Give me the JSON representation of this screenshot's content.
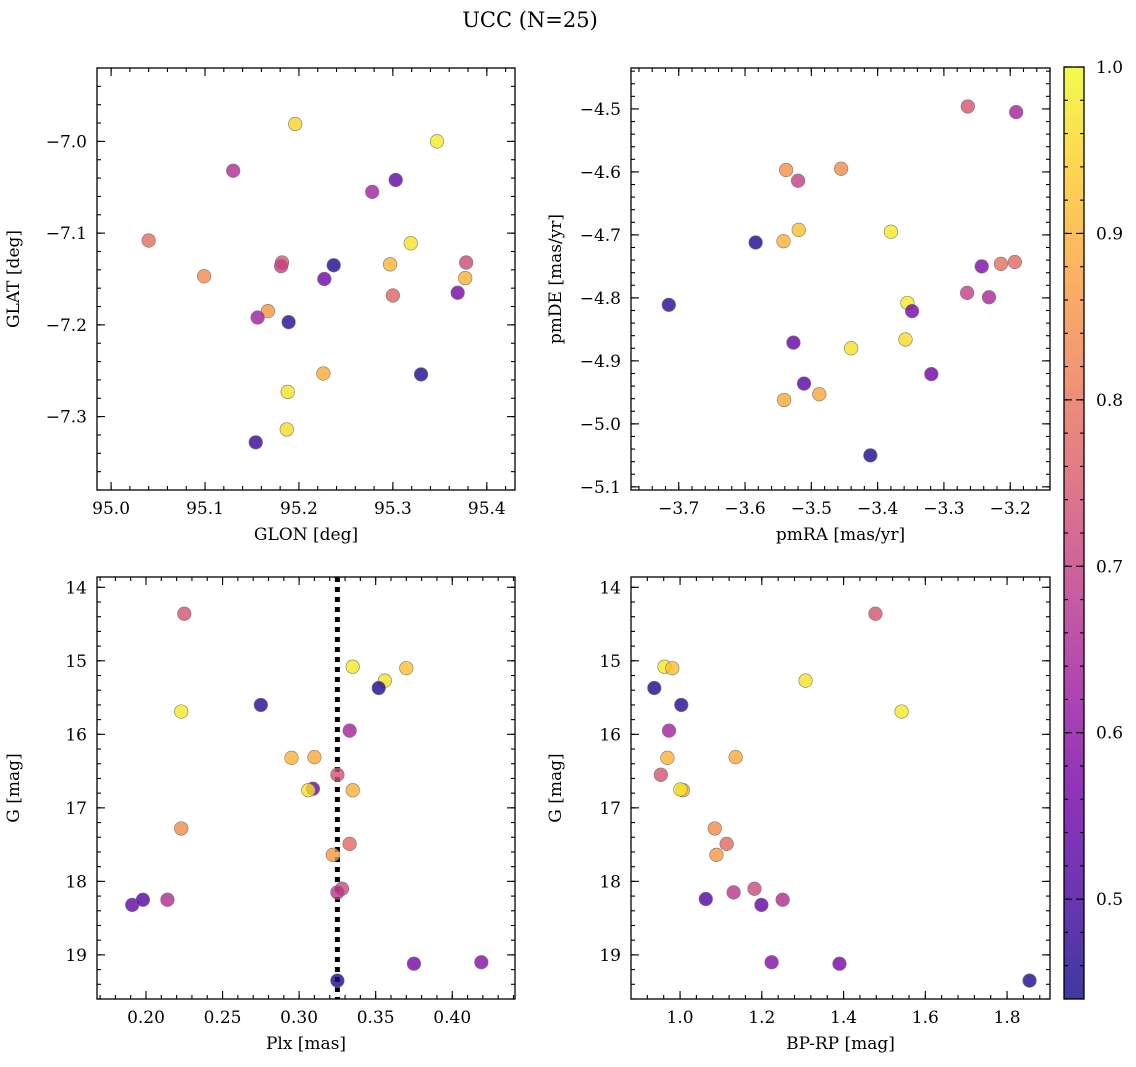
{
  "title": "UCC (N=25)",
  "colorbar": {
    "min": 0.44,
    "max": 1.0,
    "ticks": [
      0.5,
      0.6,
      0.7,
      0.8,
      0.9,
      1.0
    ],
    "tick_labels": [
      "0.5",
      "0.6",
      "0.7",
      "0.8",
      "0.9",
      "1.0"
    ],
    "colormap": "plasma",
    "colors": [
      "#0d0887",
      "#46039f",
      "#7201a8",
      "#9c179e",
      "#bd3786",
      "#d8576b",
      "#ed7953",
      "#fb9f3a",
      "#fdca26",
      "#f0f921"
    ],
    "point_alpha": 0.8
  },
  "chart_data": [
    {
      "type": "scatter",
      "id": "glon-glat",
      "xlabel": "GLON [deg]",
      "ylabel": "GLAT [deg]",
      "xlim": [
        94.985,
        95.43
      ],
      "ylim": [
        -7.38,
        -6.92
      ],
      "y_inverted": false,
      "x_ticks": [
        95.0,
        95.1,
        95.2,
        95.3,
        95.4
      ],
      "x_tick_labels": [
        "95.0",
        "95.1",
        "95.2",
        "95.3",
        "95.4"
      ],
      "y_ticks": [
        -7.0,
        -7.1,
        -7.2,
        -7.3
      ],
      "y_tick_labels": [
        "−7.0",
        "−7.1",
        "−7.2",
        "−7.3"
      ],
      "points": [
        {
          "x": 95.196,
          "y": -6.981,
          "c": 0.95
        },
        {
          "x": 95.347,
          "y": -7.0,
          "c": 0.98
        },
        {
          "x": 95.13,
          "y": -7.032,
          "c": 0.66
        },
        {
          "x": 95.278,
          "y": -7.055,
          "c": 0.64
        },
        {
          "x": 95.303,
          "y": -7.042,
          "c": 0.54
        },
        {
          "x": 95.04,
          "y": -7.108,
          "c": 0.79
        },
        {
          "x": 95.319,
          "y": -7.111,
          "c": 0.97
        },
        {
          "x": 95.099,
          "y": -7.147,
          "c": 0.84
        },
        {
          "x": 95.182,
          "y": -7.132,
          "c": 0.75
        },
        {
          "x": 95.181,
          "y": -7.136,
          "c": 0.7
        },
        {
          "x": 95.237,
          "y": -7.135,
          "c": 0.46
        },
        {
          "x": 95.227,
          "y": -7.15,
          "c": 0.56
        },
        {
          "x": 95.297,
          "y": -7.134,
          "c": 0.91
        },
        {
          "x": 95.378,
          "y": -7.132,
          "c": 0.72
        },
        {
          "x": 95.377,
          "y": -7.149,
          "c": 0.9
        },
        {
          "x": 95.3,
          "y": -7.168,
          "c": 0.77
        },
        {
          "x": 95.369,
          "y": -7.165,
          "c": 0.57
        },
        {
          "x": 95.167,
          "y": -7.185,
          "c": 0.86
        },
        {
          "x": 95.156,
          "y": -7.192,
          "c": 0.63
        },
        {
          "x": 95.189,
          "y": -7.197,
          "c": 0.47
        },
        {
          "x": 95.226,
          "y": -7.253,
          "c": 0.89
        },
        {
          "x": 95.33,
          "y": -7.254,
          "c": 0.46
        },
        {
          "x": 95.188,
          "y": -7.273,
          "c": 0.97
        },
        {
          "x": 95.187,
          "y": -7.314,
          "c": 0.96
        },
        {
          "x": 95.154,
          "y": -7.328,
          "c": 0.48
        }
      ]
    },
    {
      "type": "scatter",
      "id": "pmra-pmde",
      "xlabel": "pmRA [mas/yr]",
      "ylabel": "pmDE [mas/yr]",
      "xlim": [
        -3.772,
        -3.14
      ],
      "ylim": [
        -5.105,
        -4.435
      ],
      "y_inverted": false,
      "x_ticks": [
        -3.7,
        -3.6,
        -3.5,
        -3.4,
        -3.3,
        -3.2
      ],
      "x_tick_labels": [
        "−3.7",
        "−3.6",
        "−3.5",
        "−3.4",
        "−3.3",
        "−3.2"
      ],
      "y_ticks": [
        -4.5,
        -4.6,
        -4.7,
        -4.8,
        -4.9,
        -5.0,
        -5.1
      ],
      "y_tick_labels": [
        "−4.5",
        "−4.6",
        "−4.7",
        "−4.8",
        "−4.9",
        "−5.0",
        "−5.1"
      ],
      "points": [
        {
          "x": -3.264,
          "y": -4.496,
          "c": 0.74
        },
        {
          "x": -3.191,
          "y": -4.505,
          "c": 0.64
        },
        {
          "x": -3.538,
          "y": -4.597,
          "c": 0.85
        },
        {
          "x": -3.455,
          "y": -4.595,
          "c": 0.84
        },
        {
          "x": -3.52,
          "y": -4.614,
          "c": 0.7
        },
        {
          "x": -3.584,
          "y": -4.712,
          "c": 0.46
        },
        {
          "x": -3.542,
          "y": -4.71,
          "c": 0.9
        },
        {
          "x": -3.519,
          "y": -4.692,
          "c": 0.92
        },
        {
          "x": -3.38,
          "y": -4.695,
          "c": 0.98
        },
        {
          "x": -3.243,
          "y": -4.75,
          "c": 0.58
        },
        {
          "x": -3.214,
          "y": -4.746,
          "c": 0.79
        },
        {
          "x": -3.193,
          "y": -4.743,
          "c": 0.78
        },
        {
          "x": -3.715,
          "y": -4.811,
          "c": 0.47
        },
        {
          "x": -3.355,
          "y": -4.808,
          "c": 0.98
        },
        {
          "x": -3.348,
          "y": -4.821,
          "c": 0.57
        },
        {
          "x": -3.265,
          "y": -4.792,
          "c": 0.7
        },
        {
          "x": -3.232,
          "y": -4.799,
          "c": 0.65
        },
        {
          "x": -3.527,
          "y": -4.871,
          "c": 0.54
        },
        {
          "x": -3.44,
          "y": -4.88,
          "c": 0.97
        },
        {
          "x": -3.358,
          "y": -4.866,
          "c": 0.96
        },
        {
          "x": -3.319,
          "y": -4.921,
          "c": 0.56
        },
        {
          "x": -3.511,
          "y": -4.936,
          "c": 0.52
        },
        {
          "x": -3.541,
          "y": -4.962,
          "c": 0.89
        },
        {
          "x": -3.488,
          "y": -4.953,
          "c": 0.88
        },
        {
          "x": -3.411,
          "y": -5.05,
          "c": 0.46
        }
      ]
    },
    {
      "type": "scatter",
      "id": "plx-g",
      "xlabel": "Plx [mas]",
      "ylabel": "G [mag]",
      "xlim": [
        0.168,
        0.441
      ],
      "ylim": [
        13.86,
        19.6
      ],
      "y_inverted": true,
      "x_ticks": [
        0.2,
        0.25,
        0.3,
        0.35,
        0.4
      ],
      "x_tick_labels": [
        "0.20",
        "0.25",
        "0.30",
        "0.35",
        "0.40"
      ],
      "y_ticks": [
        14,
        15,
        16,
        17,
        18,
        19
      ],
      "y_tick_labels": [
        "14",
        "15",
        "16",
        "17",
        "18",
        "19"
      ],
      "vline": {
        "x": 0.325,
        "style": "dotted",
        "color": "#000000"
      },
      "points": [
        {
          "x": 0.225,
          "y": 14.36,
          "c": 0.74
        },
        {
          "x": 0.335,
          "y": 15.08,
          "c": 0.98
        },
        {
          "x": 0.37,
          "y": 15.1,
          "c": 0.92
        },
        {
          "x": 0.356,
          "y": 15.27,
          "c": 0.97
        },
        {
          "x": 0.352,
          "y": 15.37,
          "c": 0.46
        },
        {
          "x": 0.223,
          "y": 15.69,
          "c": 0.98
        },
        {
          "x": 0.275,
          "y": 15.6,
          "c": 0.47
        },
        {
          "x": 0.333,
          "y": 15.95,
          "c": 0.64
        },
        {
          "x": 0.295,
          "y": 16.32,
          "c": 0.9
        },
        {
          "x": 0.31,
          "y": 16.31,
          "c": 0.89
        },
        {
          "x": 0.325,
          "y": 16.55,
          "c": 0.74
        },
        {
          "x": 0.309,
          "y": 16.74,
          "c": 0.55
        },
        {
          "x": 0.306,
          "y": 16.76,
          "c": 0.97
        },
        {
          "x": 0.335,
          "y": 16.76,
          "c": 0.9
        },
        {
          "x": 0.223,
          "y": 17.28,
          "c": 0.84
        },
        {
          "x": 0.333,
          "y": 17.49,
          "c": 0.78
        },
        {
          "x": 0.322,
          "y": 17.64,
          "c": 0.86
        },
        {
          "x": 0.328,
          "y": 18.1,
          "c": 0.72
        },
        {
          "x": 0.325,
          "y": 18.15,
          "c": 0.68
        },
        {
          "x": 0.191,
          "y": 18.32,
          "c": 0.54
        },
        {
          "x": 0.198,
          "y": 18.25,
          "c": 0.52
        },
        {
          "x": 0.214,
          "y": 18.25,
          "c": 0.66
        },
        {
          "x": 0.375,
          "y": 19.12,
          "c": 0.57
        },
        {
          "x": 0.419,
          "y": 19.1,
          "c": 0.59
        },
        {
          "x": 0.325,
          "y": 19.35,
          "c": 0.46
        }
      ]
    },
    {
      "type": "scatter",
      "id": "bprp-g",
      "xlabel": "BP-RP [mag]",
      "ylabel": "G [mag]",
      "xlim": [
        0.88,
        1.905
      ],
      "ylim": [
        13.86,
        19.6
      ],
      "y_inverted": true,
      "x_ticks": [
        1.0,
        1.2,
        1.4,
        1.6,
        1.8
      ],
      "x_tick_labels": [
        "1.0",
        "1.2",
        "1.4",
        "1.6",
        "1.8"
      ],
      "y_ticks": [
        14,
        15,
        16,
        17,
        18,
        19
      ],
      "y_tick_labels": [
        "14",
        "15",
        "16",
        "17",
        "18",
        "19"
      ],
      "points": [
        {
          "x": 1.478,
          "y": 14.36,
          "c": 0.74
        },
        {
          "x": 0.962,
          "y": 15.08,
          "c": 0.98
        },
        {
          "x": 0.981,
          "y": 15.1,
          "c": 0.92
        },
        {
          "x": 1.307,
          "y": 15.27,
          "c": 0.97
        },
        {
          "x": 0.937,
          "y": 15.37,
          "c": 0.46
        },
        {
          "x": 1.003,
          "y": 15.6,
          "c": 0.47
        },
        {
          "x": 1.542,
          "y": 15.69,
          "c": 0.98
        },
        {
          "x": 0.973,
          "y": 15.95,
          "c": 0.64
        },
        {
          "x": 0.969,
          "y": 16.32,
          "c": 0.9
        },
        {
          "x": 1.136,
          "y": 16.31,
          "c": 0.89
        },
        {
          "x": 0.953,
          "y": 16.55,
          "c": 0.74
        },
        {
          "x": 1.007,
          "y": 16.76,
          "c": 0.9
        },
        {
          "x": 1.001,
          "y": 16.75,
          "c": 0.97
        },
        {
          "x": 1.085,
          "y": 17.28,
          "c": 0.84
        },
        {
          "x": 1.114,
          "y": 17.49,
          "c": 0.78
        },
        {
          "x": 1.089,
          "y": 17.64,
          "c": 0.86
        },
        {
          "x": 1.182,
          "y": 18.1,
          "c": 0.72
        },
        {
          "x": 1.131,
          "y": 18.15,
          "c": 0.68
        },
        {
          "x": 1.063,
          "y": 18.24,
          "c": 0.52
        },
        {
          "x": 1.199,
          "y": 18.32,
          "c": 0.54
        },
        {
          "x": 1.251,
          "y": 18.25,
          "c": 0.66
        },
        {
          "x": 1.224,
          "y": 19.1,
          "c": 0.59
        },
        {
          "x": 1.39,
          "y": 19.12,
          "c": 0.57
        },
        {
          "x": 1.855,
          "y": 19.35,
          "c": 0.46
        }
      ]
    }
  ]
}
